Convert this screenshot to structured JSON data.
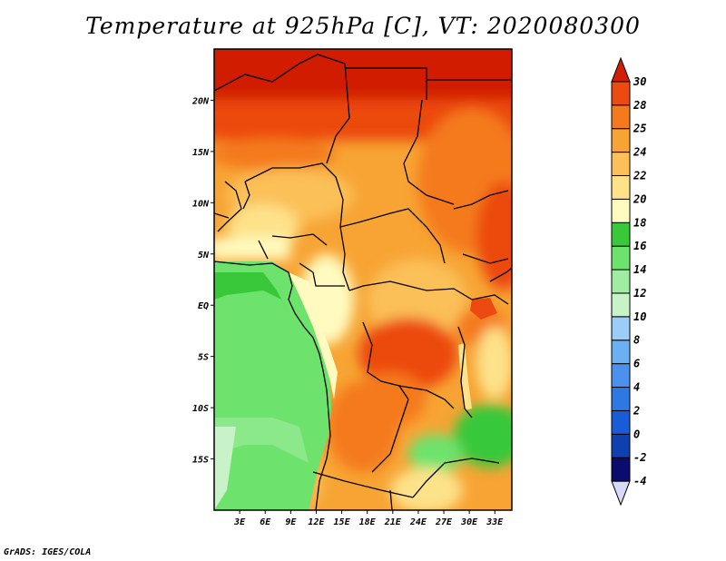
{
  "title": "Temperature at 925hPa [C], VT: 2020080300",
  "footer": "GrADS: IGES/COLA",
  "chart_data": {
    "type": "heatmap",
    "title": "Temperature at 925hPa [C], VT: 2020080300",
    "xlabel": "",
    "ylabel": "",
    "x_range": [
      0,
      35
    ],
    "y_range": [
      -20,
      25
    ],
    "x_ticks": [
      "3E",
      "6E",
      "9E",
      "12E",
      "15E",
      "18E",
      "21E",
      "24E",
      "27E",
      "30E",
      "33E"
    ],
    "x_tick_values": [
      3,
      6,
      9,
      12,
      15,
      18,
      21,
      24,
      27,
      30,
      33
    ],
    "y_ticks": [
      "20N",
      "15N",
      "10N",
      "5N",
      "EQ",
      "5S",
      "10S",
      "15S"
    ],
    "y_tick_values": [
      20,
      15,
      10,
      5,
      0,
      -5,
      -10,
      -15
    ],
    "colorbar": {
      "levels": [
        "-4",
        "-2",
        "0",
        "2",
        "4",
        "6",
        "8",
        "10",
        "12",
        "14",
        "16",
        "18",
        "20",
        "22",
        "24",
        "25",
        "28",
        "30"
      ],
      "colors": [
        "#d8d8f8",
        "#0c0c70",
        "#1040b0",
        "#1a5cd8",
        "#2e78e6",
        "#4a92ee",
        "#6cb0f4",
        "#9ccdf8",
        "#c8f2c8",
        "#a0eca0",
        "#6de26d",
        "#38c83a",
        "#fffbc0",
        "#fde28a",
        "#fbc058",
        "#f7a434",
        "#f47a1c",
        "#ec4a10",
        "#d21e06"
      ]
    },
    "grid": false
  }
}
